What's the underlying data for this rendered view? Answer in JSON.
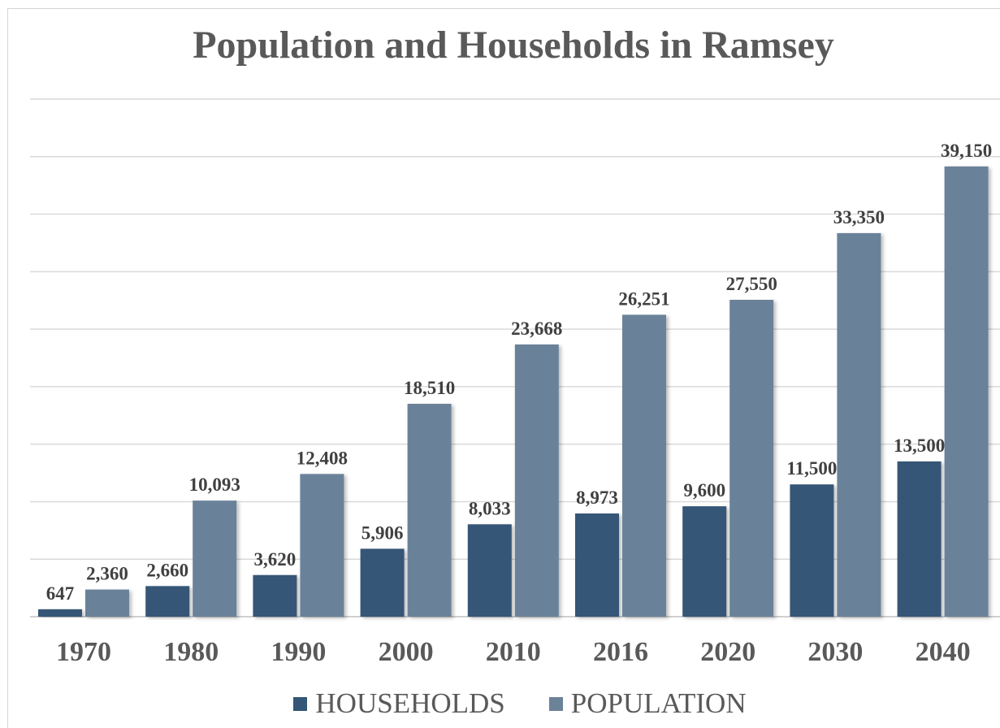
{
  "colors": {
    "households": "#345677",
    "population": "#6b8299",
    "label": "#404040",
    "grid": "#d9d9d9"
  },
  "chart_data": {
    "type": "bar",
    "title": "Population and Households in Ramsey",
    "categories": [
      "1970",
      "1980",
      "1990",
      "2000",
      "2010",
      "2016",
      "2020",
      "2030",
      "2040"
    ],
    "series": [
      {
        "name": "HOUSEHOLDS",
        "values": [
          647,
          2660,
          3620,
          5906,
          8033,
          8973,
          9600,
          11500,
          13500
        ],
        "labels": [
          "647",
          "2,660",
          "3,620",
          "5,906",
          "8,033",
          "8,973",
          "9,600",
          "11,500",
          "13,500"
        ]
      },
      {
        "name": "POPULATION",
        "values": [
          2360,
          10093,
          12408,
          18510,
          23668,
          26251,
          27550,
          33350,
          39150
        ],
        "labels": [
          "2,360",
          "10,093",
          "12,408",
          "18,510",
          "23,668",
          "26,251",
          "27,550",
          "33,350",
          "39,150"
        ]
      }
    ],
    "ylim": [
      0,
      45000
    ],
    "grid": true,
    "legend": "bottom"
  }
}
